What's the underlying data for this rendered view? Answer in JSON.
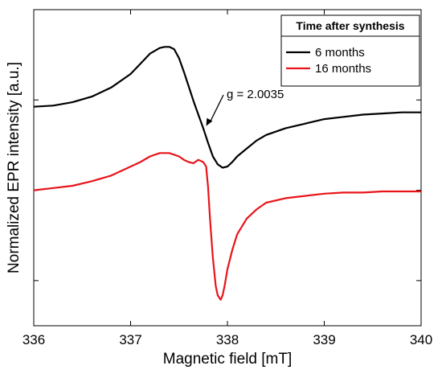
{
  "chart_data": {
    "type": "line",
    "xlabel": "Magnetic field [mT]",
    "ylabel": "Normalized EPR intensity [a.u.]",
    "xlim": [
      336,
      340
    ],
    "ylim": [
      -1.65,
      1.15
    ],
    "x_ticks": [
      336,
      337,
      338,
      339,
      340
    ],
    "x_tick_labels": [
      "336",
      "337",
      "338",
      "339",
      "340"
    ],
    "y_ticks": [
      -1.25,
      -0.45,
      0.35
    ],
    "y_tick_labels_shown": false,
    "grid": false,
    "legend": {
      "title": "Time after synthesis",
      "position": "top-right",
      "entries": [
        "6 months",
        "16 months"
      ]
    },
    "annotation": {
      "text": "g = 2.0035",
      "arrow_to": [
        337.78,
        0.12
      ]
    },
    "series": [
      {
        "name": "6 months",
        "color": "#000000",
        "x": [
          336.0,
          336.2,
          336.4,
          336.6,
          336.8,
          337.0,
          337.1,
          337.2,
          337.3,
          337.35,
          337.4,
          337.45,
          337.5,
          337.55,
          337.6,
          337.65,
          337.7,
          337.75,
          337.8,
          337.85,
          337.9,
          337.95,
          338.0,
          338.05,
          338.1,
          338.2,
          338.3,
          338.4,
          338.6,
          338.8,
          339.0,
          339.2,
          339.4,
          339.6,
          339.8,
          340.0
        ],
        "y": [
          0.29,
          0.3,
          0.33,
          0.38,
          0.46,
          0.58,
          0.67,
          0.76,
          0.81,
          0.82,
          0.82,
          0.8,
          0.72,
          0.6,
          0.47,
          0.34,
          0.22,
          0.1,
          -0.03,
          -0.15,
          -0.22,
          -0.25,
          -0.24,
          -0.2,
          -0.15,
          -0.08,
          -0.01,
          0.04,
          0.1,
          0.14,
          0.18,
          0.2,
          0.22,
          0.23,
          0.24,
          0.24
        ]
      },
      {
        "name": "16 months",
        "color": "#e8141a",
        "x": [
          336.0,
          336.2,
          336.4,
          336.6,
          336.8,
          337.0,
          337.1,
          337.2,
          337.3,
          337.4,
          337.5,
          337.55,
          337.6,
          337.65,
          337.7,
          337.75,
          337.78,
          337.8,
          337.82,
          337.85,
          337.88,
          337.9,
          337.93,
          337.95,
          337.97,
          338.0,
          338.05,
          338.1,
          338.2,
          338.3,
          338.4,
          338.6,
          338.8,
          339.0,
          339.2,
          339.4,
          339.6,
          339.8,
          340.0
        ],
        "y": [
          -0.45,
          -0.43,
          -0.41,
          -0.37,
          -0.32,
          -0.24,
          -0.2,
          -0.15,
          -0.12,
          -0.12,
          -0.15,
          -0.18,
          -0.2,
          -0.21,
          -0.18,
          -0.2,
          -0.24,
          -0.42,
          -0.7,
          -1.05,
          -1.3,
          -1.38,
          -1.42,
          -1.38,
          -1.3,
          -1.15,
          -0.98,
          -0.84,
          -0.7,
          -0.62,
          -0.56,
          -0.52,
          -0.5,
          -0.48,
          -0.47,
          -0.47,
          -0.46,
          -0.46,
          -0.46
        ]
      }
    ]
  }
}
